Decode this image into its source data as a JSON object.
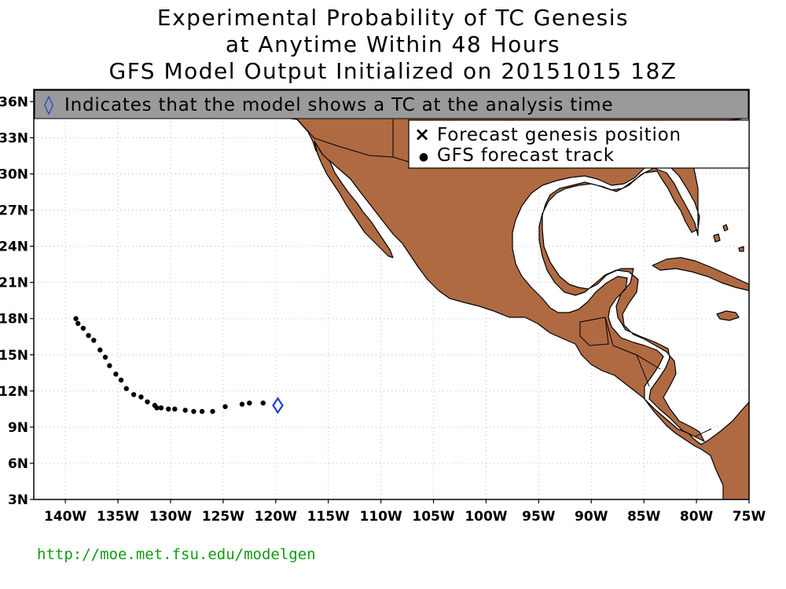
{
  "title": {
    "line1": "Experimental Probability of TC Genesis",
    "line2": "at Anytime Within 48 Hours",
    "line3": "GFS Model Output Initialized on 20151015 18Z"
  },
  "banner": {
    "symbol": "◊",
    "text": "Indicates that the model shows a TC at the analysis time"
  },
  "legend": {
    "items": [
      {
        "symbol": "×",
        "label": "Forecast genesis position"
      },
      {
        "symbol": "●",
        "label": "GFS forecast track"
      }
    ]
  },
  "footer": {
    "url": "http://moe.met.fsu.edu/modelgen"
  },
  "colors": {
    "land": "#b06a42",
    "ocean": "#ffffff",
    "track": "#000000",
    "analysis_marker": "#1f3fd6",
    "banner_bg": "#9a9a9a",
    "url": "#129b12"
  },
  "chart_data": {
    "type": "scatter",
    "x_label_units": "longitude (degrees east)",
    "y_label_units": "latitude (degrees north)",
    "xlim": [
      -143,
      -75
    ],
    "ylim": [
      3,
      37
    ],
    "grid": true,
    "x_ticks": [
      {
        "value": -140,
        "label": "140W"
      },
      {
        "value": -135,
        "label": "135W"
      },
      {
        "value": -130,
        "label": "130W"
      },
      {
        "value": -125,
        "label": "125W"
      },
      {
        "value": -120,
        "label": "120W"
      },
      {
        "value": -115,
        "label": "115W"
      },
      {
        "value": -110,
        "label": "110W"
      },
      {
        "value": -105,
        "label": "105W"
      },
      {
        "value": -100,
        "label": "100W"
      },
      {
        "value": -95,
        "label": "95W"
      },
      {
        "value": -90,
        "label": "90W"
      },
      {
        "value": -85,
        "label": "85W"
      },
      {
        "value": -80,
        "label": "80W"
      },
      {
        "value": -75,
        "label": "75W"
      }
    ],
    "y_ticks": [
      {
        "value": 3,
        "label": "3N"
      },
      {
        "value": 6,
        "label": "6N"
      },
      {
        "value": 9,
        "label": "9N"
      },
      {
        "value": 12,
        "label": "12N"
      },
      {
        "value": 15,
        "label": "15N"
      },
      {
        "value": 18,
        "label": "18N"
      },
      {
        "value": 21,
        "label": "21N"
      },
      {
        "value": 24,
        "label": "24N"
      },
      {
        "value": 27,
        "label": "27N"
      },
      {
        "value": 30,
        "label": "30N"
      },
      {
        "value": 33,
        "label": "33N"
      },
      {
        "value": 36,
        "label": "36N"
      }
    ],
    "series": [
      {
        "name": "GFS forecast track",
        "points": [
          {
            "lon": -121.2,
            "lat": 11.0
          },
          {
            "lon": -122.5,
            "lat": 11.0
          },
          {
            "lon": -123.2,
            "lat": 10.9
          },
          {
            "lon": -124.8,
            "lat": 10.7
          },
          {
            "lon": -126.0,
            "lat": 10.3
          },
          {
            "lon": -127.0,
            "lat": 10.3
          },
          {
            "lon": -127.8,
            "lat": 10.3
          },
          {
            "lon": -128.6,
            "lat": 10.4
          },
          {
            "lon": -129.6,
            "lat": 10.5
          },
          {
            "lon": -130.2,
            "lat": 10.5
          },
          {
            "lon": -130.9,
            "lat": 10.6
          },
          {
            "lon": -131.3,
            "lat": 10.6
          },
          {
            "lon": -131.5,
            "lat": 10.8
          },
          {
            "lon": -132.2,
            "lat": 11.1
          },
          {
            "lon": -132.8,
            "lat": 11.5
          },
          {
            "lon": -133.5,
            "lat": 11.7
          },
          {
            "lon": -134.2,
            "lat": 12.2
          },
          {
            "lon": -134.7,
            "lat": 12.9
          },
          {
            "lon": -135.2,
            "lat": 13.4
          },
          {
            "lon": -135.8,
            "lat": 14.1
          },
          {
            "lon": -136.2,
            "lat": 14.8
          },
          {
            "lon": -136.7,
            "lat": 15.4
          },
          {
            "lon": -137.3,
            "lat": 16.2
          },
          {
            "lon": -137.8,
            "lat": 16.6
          },
          {
            "lon": -138.3,
            "lat": 17.2
          },
          {
            "lon": -138.8,
            "lat": 17.6
          },
          {
            "lon": -139.0,
            "lat": 18.0
          }
        ]
      },
      {
        "name": "Indicates that the model shows a TC at the analysis time",
        "points": [
          {
            "lon": -119.8,
            "lat": 10.8
          }
        ]
      }
    ]
  }
}
